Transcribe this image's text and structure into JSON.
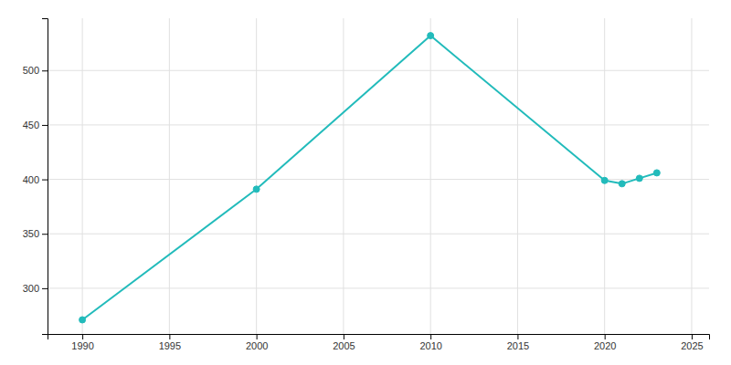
{
  "chart_data": {
    "type": "line",
    "x": [
      1990,
      2000,
      2010,
      2020,
      2021,
      2022,
      2023
    ],
    "values": [
      271,
      391,
      532,
      399,
      396,
      401,
      406
    ],
    "color": "#22BBBB",
    "marker": "circle",
    "xlim": [
      1988,
      2026
    ],
    "ylim": [
      258,
      548
    ],
    "xticks": [
      1990,
      1995,
      2000,
      2005,
      2010,
      2015,
      2020,
      2025
    ],
    "yticks": [
      300,
      350,
      400,
      450,
      500
    ],
    "grid": true
  }
}
